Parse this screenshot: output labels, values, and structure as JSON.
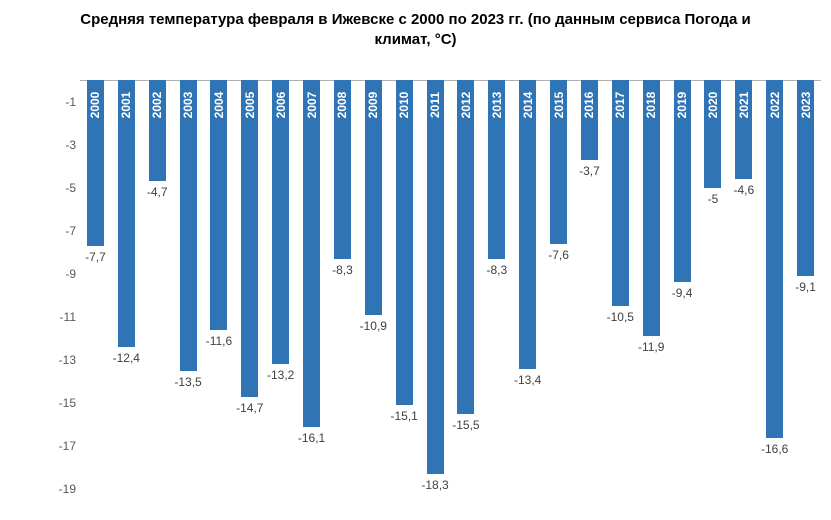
{
  "chart": {
    "type": "bar",
    "title": "Средняя температура февраля в Ижевске с 2000 по 2023 гг. (по данным сервиса Погода и климат, °С)",
    "title_fontsize": 15,
    "title_fontweight": "bold",
    "title_color": "#000000",
    "background_color": "#ffffff",
    "bar_color": "#2f75b5",
    "axis_color": "#b0b0b0",
    "tick_color": "#595959",
    "value_label_color": "#404040",
    "year_label_color": "#ffffff",
    "year_label_fontsize": 12,
    "value_label_fontsize": 12,
    "tick_fontsize": 12,
    "ylim": [
      -19.5,
      0
    ],
    "yticks": [
      -1,
      -3,
      -5,
      -7,
      -9,
      -11,
      -13,
      -15,
      -17,
      -19
    ],
    "bar_width_ratio": 0.55,
    "categories": [
      "2000",
      "2001",
      "2002",
      "2003",
      "2004",
      "2005",
      "2006",
      "2007",
      "2008",
      "2009",
      "2010",
      "2011",
      "2012",
      "2013",
      "2014",
      "2015",
      "2016",
      "2017",
      "2018",
      "2019",
      "2020",
      "2021",
      "2022",
      "2023"
    ],
    "values": [
      -7.7,
      -12.4,
      -4.7,
      -13.5,
      -11.6,
      -14.7,
      -13.2,
      -16.1,
      -8.3,
      -10.9,
      -15.1,
      -18.3,
      -15.5,
      -8.3,
      -13.4,
      -7.6,
      -3.7,
      -10.5,
      -11.9,
      -9.4,
      -5,
      -4.6,
      -16.6,
      -9.1
    ],
    "value_labels": [
      "-7,7",
      "-12,4",
      "-4,7",
      "-13,5",
      "-11,6",
      "-14,7",
      "-13,2",
      "-16,1",
      "-8,3",
      "-10,9",
      "-15,1",
      "-18,3",
      "-15,5",
      "-8,3",
      "-13,4",
      "-7,6",
      "-3,7",
      "-10,5",
      "-11,9",
      "-9,4",
      "-5",
      "-4,6",
      "-16,6",
      "-9,1"
    ]
  }
}
